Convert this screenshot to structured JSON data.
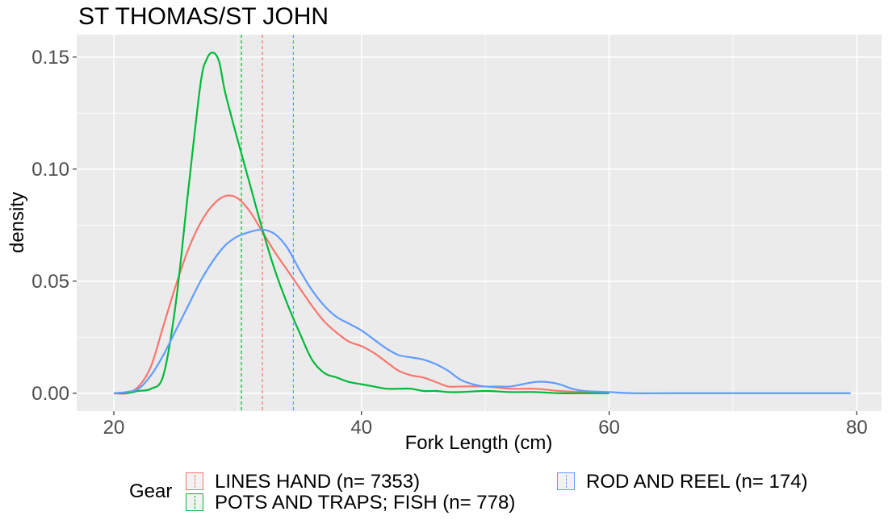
{
  "chart_data": {
    "type": "line",
    "title": "ST THOMAS/ST JOHN",
    "xlabel": "Fork Length (cm)",
    "ylabel": "density",
    "xlim": [
      17,
      82
    ],
    "ylim": [
      -0.008,
      0.16
    ],
    "x_ticks": [
      20,
      40,
      60,
      80
    ],
    "x_tick_labels": [
      "20",
      "40",
      "60",
      "80"
    ],
    "y_ticks": [
      0.0,
      0.05,
      0.1,
      0.15
    ],
    "y_tick_labels": [
      "0.00",
      "0.05",
      "0.10",
      "0.15"
    ],
    "grid": true,
    "legend": {
      "title": "Gear",
      "position": "bottom",
      "entries": [
        "LINES HAND (n= 7353)",
        "POTS AND TRAPS; FISH (n= 778)",
        "ROD AND REEL (n= 174)"
      ]
    },
    "series": [
      {
        "name": "LINES HAND (n= 7353)",
        "color": "#F8766D",
        "mean": 32.0,
        "x": [
          20,
          21,
          22,
          23,
          24,
          25,
          26,
          27,
          28,
          29,
          30,
          31,
          32,
          33,
          34,
          35,
          36,
          37,
          38,
          39,
          40,
          41,
          42,
          43,
          44,
          45,
          46,
          47,
          48,
          50,
          52,
          54,
          56,
          58,
          60
        ],
        "y": [
          0.0,
          0.0,
          0.003,
          0.012,
          0.03,
          0.048,
          0.064,
          0.076,
          0.084,
          0.088,
          0.087,
          0.081,
          0.072,
          0.063,
          0.055,
          0.047,
          0.039,
          0.032,
          0.027,
          0.023,
          0.021,
          0.018,
          0.014,
          0.01,
          0.008,
          0.007,
          0.005,
          0.003,
          0.003,
          0.003,
          0.002,
          0.002,
          0.001,
          0.0005,
          0.0
        ]
      },
      {
        "name": "POTS AND TRAPS; FISH (n= 778)",
        "color": "#00BA38",
        "mean": 30.3,
        "x": [
          20,
          21,
          22,
          23,
          24,
          25,
          26,
          27,
          27.5,
          28,
          28.5,
          29,
          30,
          31,
          32,
          33,
          34,
          35,
          36,
          37,
          38,
          39,
          40,
          41,
          42,
          43,
          44,
          45,
          46,
          47,
          48,
          50,
          52,
          54,
          56,
          58,
          60
        ],
        "y": [
          0.0,
          0.0,
          0.001,
          0.002,
          0.008,
          0.04,
          0.09,
          0.138,
          0.149,
          0.152,
          0.148,
          0.134,
          0.113,
          0.093,
          0.073,
          0.055,
          0.04,
          0.027,
          0.015,
          0.009,
          0.007,
          0.005,
          0.004,
          0.003,
          0.002,
          0.002,
          0.002,
          0.001,
          0.001,
          0.0005,
          0.0005,
          0.001,
          0.0005,
          0.0005,
          0.0,
          0.0,
          0.0
        ]
      },
      {
        "name": "ROD AND REEL (n= 174)",
        "color": "#619CFF",
        "mean": 34.5,
        "x": [
          20,
          21,
          22,
          23,
          24,
          25,
          26,
          27,
          28,
          29,
          30,
          31,
          32,
          33,
          34,
          35,
          36,
          37,
          38,
          39,
          40,
          41,
          42,
          43,
          44,
          45,
          46,
          47,
          48,
          49,
          50,
          51,
          52,
          53,
          54,
          55,
          56,
          57,
          58,
          60,
          62,
          65,
          70,
          75,
          79.5
        ],
        "y": [
          0.0,
          0.0005,
          0.002,
          0.008,
          0.017,
          0.028,
          0.039,
          0.05,
          0.059,
          0.066,
          0.07,
          0.072,
          0.073,
          0.071,
          0.065,
          0.055,
          0.046,
          0.039,
          0.034,
          0.031,
          0.028,
          0.024,
          0.02,
          0.017,
          0.016,
          0.015,
          0.013,
          0.01,
          0.006,
          0.004,
          0.003,
          0.003,
          0.003,
          0.004,
          0.005,
          0.005,
          0.004,
          0.002,
          0.001,
          0.0005,
          0.0,
          0.0,
          0.0,
          0.0,
          0.0
        ]
      }
    ]
  }
}
